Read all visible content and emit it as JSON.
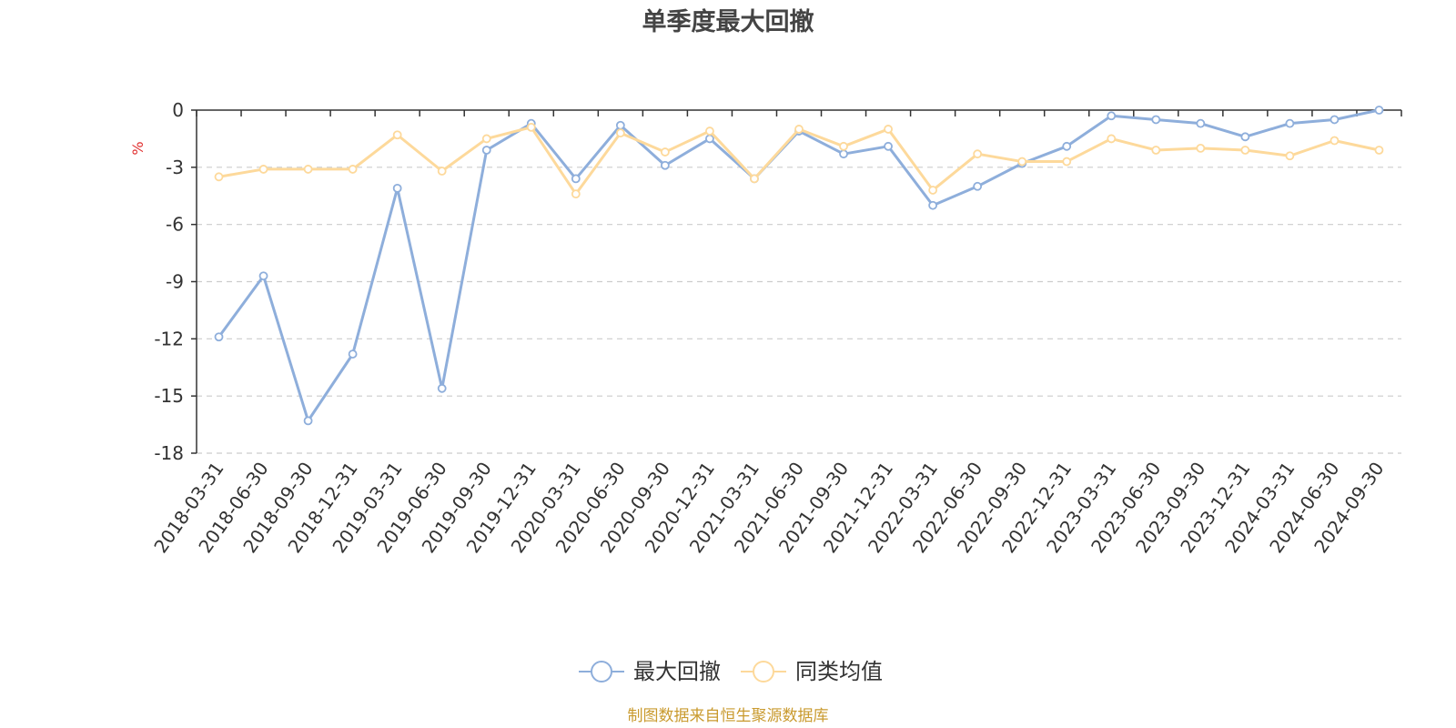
{
  "chart_data": {
    "type": "line",
    "title": "单季度最大回撤",
    "ylabel": "%",
    "ylim": [
      -18,
      0
    ],
    "yticks": [
      0,
      -3,
      -6,
      -9,
      -12,
      -15,
      -18
    ],
    "grid": true,
    "legend_position": "bottom-center",
    "categories": [
      "2018-03-31",
      "2018-06-30",
      "2018-09-30",
      "2018-12-31",
      "2019-03-31",
      "2019-06-30",
      "2019-09-30",
      "2019-12-31",
      "2020-03-31",
      "2020-06-30",
      "2020-09-30",
      "2020-12-31",
      "2021-03-31",
      "2021-06-30",
      "2021-09-30",
      "2021-12-31",
      "2022-03-31",
      "2022-06-30",
      "2022-09-30",
      "2022-12-31",
      "2023-03-31",
      "2023-06-30",
      "2023-09-30",
      "2023-12-31",
      "2024-03-31",
      "2024-06-30",
      "2024-09-30"
    ],
    "series": [
      {
        "name": "最大回撤",
        "color": "#8eaedb",
        "values": [
          -11.9,
          -8.7,
          -16.3,
          -12.8,
          -4.1,
          -14.6,
          -2.1,
          -0.7,
          -3.6,
          -0.8,
          -2.9,
          -1.5,
          -3.6,
          -1.1,
          -2.3,
          -1.9,
          -5.0,
          -4.0,
          -2.8,
          -1.9,
          -0.3,
          -0.5,
          -0.7,
          -1.4,
          -0.7,
          -0.5,
          0.0
        ]
      },
      {
        "name": "同类均值",
        "color": "#fdd99b",
        "values": [
          -3.5,
          -3.1,
          -3.1,
          -3.1,
          -1.3,
          -3.2,
          -1.5,
          -0.9,
          -4.4,
          -1.2,
          -2.2,
          -1.1,
          -3.6,
          -1.0,
          -1.9,
          -1.0,
          -4.2,
          -2.3,
          -2.7,
          -2.7,
          -1.5,
          -2.1,
          -2.0,
          -2.1,
          -2.4,
          -1.6,
          -2.1
        ]
      }
    ],
    "footnote": "制图数据来自恒生聚源数据库"
  }
}
